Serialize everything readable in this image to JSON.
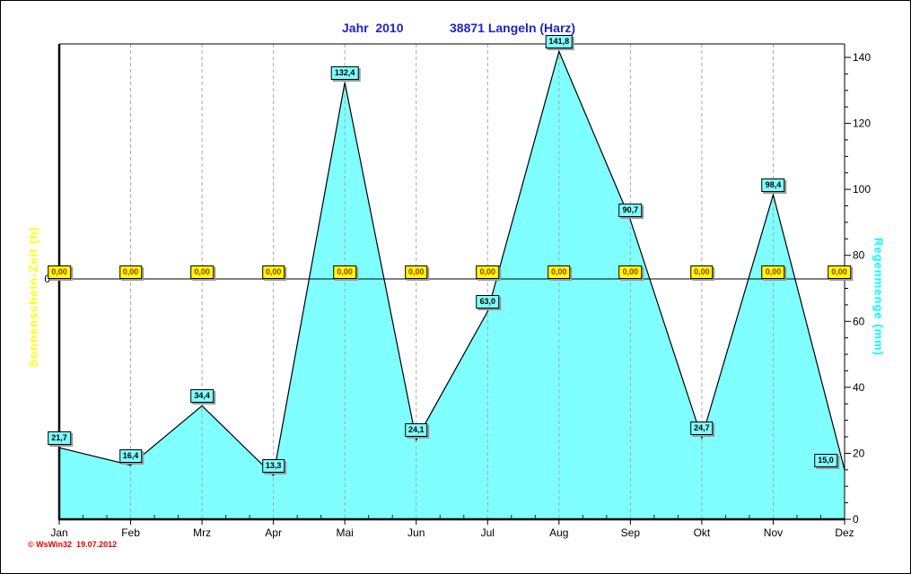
{
  "title": {
    "left": "Jahr  2010",
    "right": "38871 Langeln (Harz)"
  },
  "copyright": "© WsWin32  19.07.2012",
  "colors": {
    "title": "#2222cc",
    "sun_label": "#ffff00",
    "rain_label": "#00ffff",
    "area_fill": "#7fffff",
    "grid": "#a8a8a8",
    "copyright": "#e00000",
    "sun_box_bg": "#ffff00",
    "sun_box_text": "#a03000",
    "rain_box_bg": "#7fffff"
  },
  "chart_data": {
    "type": "area",
    "title": "Jahr 2010  38871 Langeln (Harz)",
    "categories": [
      "Jan",
      "Feb",
      "Mrz",
      "Apr",
      "Mai",
      "Jun",
      "Jul",
      "Aug",
      "Sep",
      "Okt",
      "Nov",
      "Dez"
    ],
    "series": [
      {
        "name": "Regenmenge (mm)",
        "axis": "right",
        "values": [
          21.7,
          16.4,
          34.4,
          13.3,
          132.4,
          24.1,
          63.0,
          141.8,
          90.7,
          24.7,
          98.4,
          15.0
        ],
        "display_labels": [
          "21,7",
          "16,4",
          "34,4",
          "13,3",
          "132,4",
          "24,1",
          "63,0",
          "141,8",
          "90,7",
          "24,7",
          "98,4",
          "15,0"
        ]
      },
      {
        "name": "Sonnenschein-Zeit (h)",
        "axis": "left",
        "values": [
          0,
          0,
          0,
          0,
          0,
          0,
          0,
          0,
          0,
          0,
          0,
          0
        ],
        "display_labels": [
          "0,00",
          "0,00",
          "0,00",
          "0,00",
          "0,00",
          "0,00",
          "0,00",
          "0,00",
          "0,00",
          "0,00",
          "0,00",
          "0,00"
        ]
      }
    ],
    "right_axis": {
      "label": "Regenmenge  (mm)",
      "min": 0,
      "max": 140,
      "major_step": 20,
      "minor_step": 5,
      "tick_labels": [
        "0",
        "20",
        "40",
        "60",
        "80",
        "100",
        "120",
        "140"
      ]
    },
    "left_axis": {
      "label": "Sonnenschein-Zeit  (h)",
      "zero_label": "0"
    },
    "grid": "vertical-dashed",
    "legend_position": "none"
  }
}
